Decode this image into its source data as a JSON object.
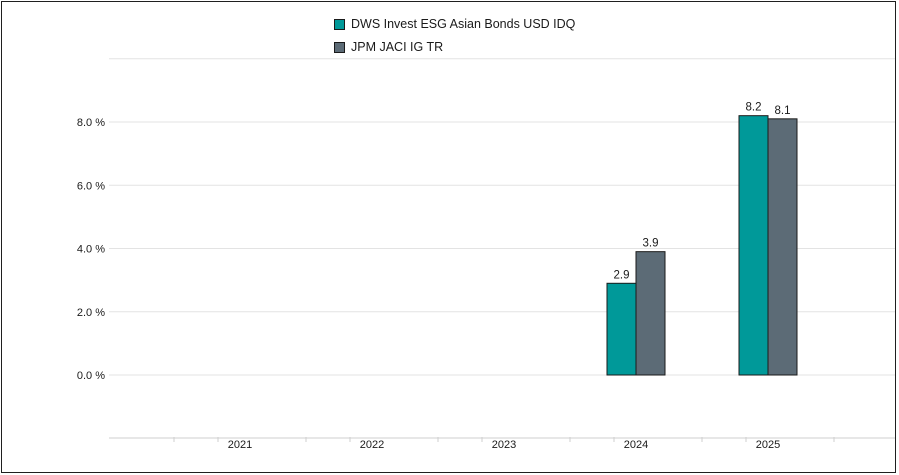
{
  "chart_data": {
    "type": "bar",
    "categories": [
      "2021",
      "2022",
      "2023",
      "2024",
      "2025"
    ],
    "series": [
      {
        "name": "DWS Invest ESG Asian Bonds USD IDQ",
        "color": "#009999",
        "values": [
          null,
          null,
          null,
          2.9,
          8.2
        ],
        "labels": [
          "",
          "",
          "",
          "2.9",
          "8.2"
        ]
      },
      {
        "name": "JPM JACI IG TR",
        "color": "#5c6b76",
        "values": [
          null,
          null,
          null,
          3.9,
          8.1
        ],
        "labels": [
          "",
          "",
          "",
          "3.9",
          "8.1"
        ]
      }
    ],
    "y_ticks": [
      0,
      2,
      4,
      6,
      8
    ],
    "y_tick_labels": [
      "0.0 %",
      "2.0 %",
      "4.0 %",
      "6.0 %",
      "8.0 %"
    ],
    "ylim": [
      -2,
      10
    ],
    "grid": true,
    "legend_position": "top-center"
  }
}
